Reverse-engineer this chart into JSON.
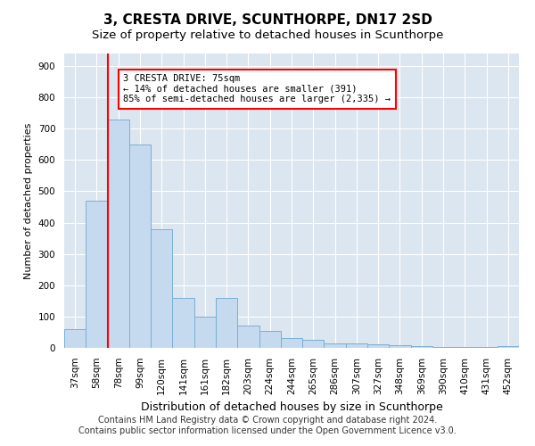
{
  "title": "3, CRESTA DRIVE, SCUNTHORPE, DN17 2SD",
  "subtitle": "Size of property relative to detached houses in Scunthorpe",
  "xlabel": "Distribution of detached houses by size in Scunthorpe",
  "ylabel": "Number of detached properties",
  "categories": [
    "37sqm",
    "58sqm",
    "78sqm",
    "99sqm",
    "120sqm",
    "141sqm",
    "161sqm",
    "182sqm",
    "203sqm",
    "224sqm",
    "244sqm",
    "265sqm",
    "286sqm",
    "307sqm",
    "327sqm",
    "348sqm",
    "369sqm",
    "390sqm",
    "410sqm",
    "431sqm",
    "452sqm"
  ],
  "values": [
    60,
    470,
    730,
    650,
    380,
    160,
    100,
    160,
    70,
    55,
    30,
    25,
    15,
    15,
    10,
    8,
    6,
    4,
    2,
    2,
    5
  ],
  "bar_color": "#c5d9ef",
  "bar_edge_color": "#7bafd4",
  "red_line_bar_index": 2,
  "annotation_line1": "3 CRESTA DRIVE: 75sqm",
  "annotation_line2": "← 14% of detached houses are smaller (391)",
  "annotation_line3": "85% of semi-detached houses are larger (2,335) →",
  "annotation_box_color": "white",
  "annotation_box_edge": "red",
  "ylim": [
    0,
    940
  ],
  "yticks": [
    0,
    100,
    200,
    300,
    400,
    500,
    600,
    700,
    800,
    900
  ],
  "plot_background": "#dce6f0",
  "footer_line1": "Contains HM Land Registry data © Crown copyright and database right 2024.",
  "footer_line2": "Contains public sector information licensed under the Open Government Licence v3.0.",
  "title_fontsize": 11,
  "subtitle_fontsize": 9.5,
  "xlabel_fontsize": 9,
  "ylabel_fontsize": 8,
  "tick_fontsize": 7.5,
  "footer_fontsize": 7,
  "annotation_fontsize": 7.5
}
